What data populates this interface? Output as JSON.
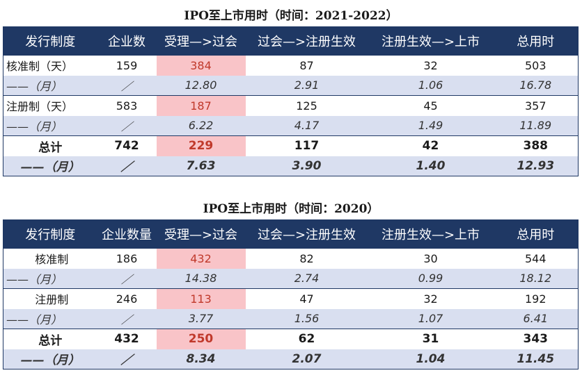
{
  "table1": {
    "title": "IPO至上市用时（时间：2021-2022）",
    "headers": [
      "发行制度",
      "企业数",
      "受理—>过会",
      "过会—>注册生效",
      "注册生效—>上市",
      "总用时"
    ],
    "rows": [
      {
        "kind": "main",
        "cells": [
          "核准制（天）",
          "159",
          "384",
          "87",
          "32",
          "503"
        ]
      },
      {
        "kind": "sub",
        "cells": [
          "——（月）",
          "／",
          "12.80",
          "2.91",
          "1.06",
          "16.78"
        ]
      },
      {
        "kind": "main",
        "cells": [
          "注册制（天）",
          "583",
          "187",
          "125",
          "45",
          "357"
        ]
      },
      {
        "kind": "sub",
        "cells": [
          "——（月）",
          "／",
          "6.22",
          "4.17",
          "1.49",
          "11.89"
        ]
      },
      {
        "kind": "tot",
        "cells": [
          "总计",
          "742",
          "229",
          "117",
          "42",
          "388"
        ]
      },
      {
        "kind": "totsub",
        "cells": [
          "——（月）",
          "／",
          "7.63",
          "3.90",
          "1.40",
          "12.93"
        ]
      }
    ]
  },
  "table2": {
    "title": "IPO至上市用时（时间：2020）",
    "headers": [
      "发行制度",
      "企业数量",
      "受理—>过会",
      "过会—>注册生效",
      "注册生效—>上市",
      "总用时"
    ],
    "rows": [
      {
        "kind": "main",
        "cells": [
          "核准制",
          "186",
          "432",
          "82",
          "30",
          "544"
        ]
      },
      {
        "kind": "sub",
        "cells": [
          "——（月）",
          "／",
          "14.38",
          "2.74",
          "0.99",
          "18.12"
        ]
      },
      {
        "kind": "main",
        "cells": [
          "注册制",
          "246",
          "113",
          "47",
          "32",
          "192"
        ]
      },
      {
        "kind": "sub",
        "cells": [
          "——（月）",
          "／",
          "3.77",
          "1.56",
          "1.07",
          "6.41"
        ]
      },
      {
        "kind": "tot",
        "cells": [
          "总计",
          "432",
          "250",
          "62",
          "31",
          "343"
        ]
      },
      {
        "kind": "totsub",
        "cells": [
          "——（月）",
          "／",
          "8.34",
          "2.07",
          "1.04",
          "11.45"
        ]
      }
    ]
  },
  "colors": {
    "header_bg": "#1f3864",
    "highlight": "#f9c4c8",
    "sub_row_bg": "#d9dff0"
  }
}
